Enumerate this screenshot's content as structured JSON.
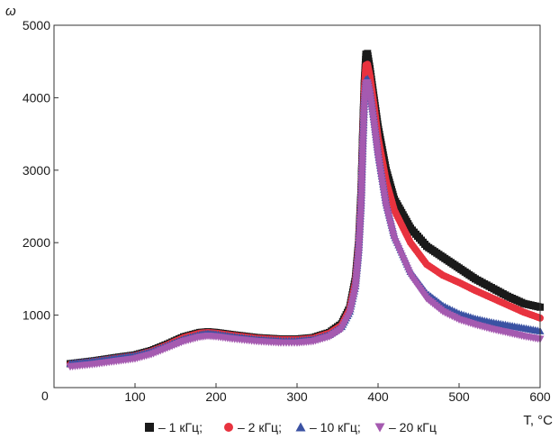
{
  "chart_data": {
    "type": "scatter",
    "ylabel": "ω",
    "xlabel": "T, °C",
    "xlim": [
      0,
      600
    ],
    "ylim": [
      0,
      5000
    ],
    "x_ticks": [
      "100",
      "200",
      "300",
      "400",
      "500",
      "600"
    ],
    "y_ticks": [
      "1000",
      "2000",
      "3000",
      "4000",
      "5000"
    ],
    "origin_label": "0",
    "grid": false,
    "legend_position": "bottom",
    "series": [
      {
        "name": "– 1 кГц;",
        "marker": "square",
        "color": "#1a1a1a",
        "points": [
          [
            20,
            330
          ],
          [
            50,
            370
          ],
          [
            80,
            420
          ],
          [
            100,
            450
          ],
          [
            120,
            510
          ],
          [
            140,
            600
          ],
          [
            160,
            700
          ],
          [
            180,
            760
          ],
          [
            190,
            770
          ],
          [
            200,
            760
          ],
          [
            220,
            730
          ],
          [
            250,
            690
          ],
          [
            280,
            670
          ],
          [
            300,
            670
          ],
          [
            320,
            690
          ],
          [
            340,
            760
          ],
          [
            355,
            880
          ],
          [
            365,
            1100
          ],
          [
            372,
            1500
          ],
          [
            376,
            2000
          ],
          [
            379,
            2700
          ],
          [
            381,
            3500
          ],
          [
            383,
            4200
          ],
          [
            385,
            4600
          ],
          [
            387,
            4610
          ],
          [
            390,
            4400
          ],
          [
            395,
            4000
          ],
          [
            400,
            3600
          ],
          [
            410,
            3000
          ],
          [
            420,
            2600
          ],
          [
            440,
            2200
          ],
          [
            460,
            1950
          ],
          [
            480,
            1800
          ],
          [
            500,
            1650
          ],
          [
            520,
            1500
          ],
          [
            540,
            1380
          ],
          [
            560,
            1260
          ],
          [
            580,
            1160
          ],
          [
            600,
            1110
          ]
        ]
      },
      {
        "name": "– 2 кГц;",
        "marker": "circle",
        "color": "#e8333f",
        "points": [
          [
            20,
            320
          ],
          [
            50,
            360
          ],
          [
            80,
            410
          ],
          [
            100,
            440
          ],
          [
            120,
            500
          ],
          [
            140,
            590
          ],
          [
            160,
            690
          ],
          [
            180,
            750
          ],
          [
            190,
            760
          ],
          [
            200,
            750
          ],
          [
            220,
            720
          ],
          [
            250,
            680
          ],
          [
            280,
            660
          ],
          [
            300,
            660
          ],
          [
            320,
            680
          ],
          [
            340,
            750
          ],
          [
            355,
            860
          ],
          [
            365,
            1080
          ],
          [
            372,
            1450
          ],
          [
            376,
            1950
          ],
          [
            379,
            2600
          ],
          [
            381,
            3400
          ],
          [
            383,
            4100
          ],
          [
            385,
            4450
          ],
          [
            387,
            4460
          ],
          [
            390,
            4300
          ],
          [
            395,
            3900
          ],
          [
            400,
            3450
          ],
          [
            410,
            2850
          ],
          [
            420,
            2450
          ],
          [
            440,
            2000
          ],
          [
            460,
            1700
          ],
          [
            480,
            1550
          ],
          [
            500,
            1450
          ],
          [
            520,
            1340
          ],
          [
            540,
            1240
          ],
          [
            560,
            1140
          ],
          [
            580,
            1040
          ],
          [
            600,
            960
          ]
        ]
      },
      {
        "name": "– 10 кГц;",
        "marker": "triangle-up",
        "color": "#3b52a3",
        "points": [
          [
            20,
            330
          ],
          [
            50,
            365
          ],
          [
            80,
            410
          ],
          [
            100,
            440
          ],
          [
            120,
            495
          ],
          [
            140,
            580
          ],
          [
            160,
            670
          ],
          [
            180,
            730
          ],
          [
            190,
            745
          ],
          [
            200,
            735
          ],
          [
            220,
            705
          ],
          [
            250,
            665
          ],
          [
            280,
            645
          ],
          [
            300,
            645
          ],
          [
            320,
            665
          ],
          [
            340,
            730
          ],
          [
            355,
            840
          ],
          [
            365,
            1050
          ],
          [
            372,
            1400
          ],
          [
            376,
            1900
          ],
          [
            379,
            2550
          ],
          [
            381,
            3300
          ],
          [
            383,
            3950
          ],
          [
            385,
            4250
          ],
          [
            387,
            4260
          ],
          [
            390,
            4100
          ],
          [
            395,
            3700
          ],
          [
            400,
            3250
          ],
          [
            410,
            2550
          ],
          [
            420,
            2100
          ],
          [
            440,
            1600
          ],
          [
            460,
            1300
          ],
          [
            480,
            1130
          ],
          [
            500,
            1020
          ],
          [
            520,
            950
          ],
          [
            540,
            900
          ],
          [
            560,
            860
          ],
          [
            580,
            820
          ],
          [
            600,
            780
          ]
        ]
      },
      {
        "name": "– 20 кГц",
        "marker": "triangle-down",
        "color": "#a55ab0",
        "points": [
          [
            20,
            290
          ],
          [
            50,
            325
          ],
          [
            80,
            370
          ],
          [
            100,
            400
          ],
          [
            120,
            460
          ],
          [
            140,
            550
          ],
          [
            160,
            640
          ],
          [
            180,
            700
          ],
          [
            190,
            715
          ],
          [
            200,
            705
          ],
          [
            220,
            675
          ],
          [
            250,
            640
          ],
          [
            280,
            620
          ],
          [
            300,
            620
          ],
          [
            320,
            640
          ],
          [
            340,
            705
          ],
          [
            355,
            810
          ],
          [
            365,
            1020
          ],
          [
            372,
            1370
          ],
          [
            376,
            1850
          ],
          [
            379,
            2500
          ],
          [
            381,
            3250
          ],
          [
            383,
            3900
          ],
          [
            385,
            4200
          ],
          [
            387,
            4210
          ],
          [
            390,
            4050
          ],
          [
            395,
            3650
          ],
          [
            400,
            3200
          ],
          [
            410,
            2500
          ],
          [
            420,
            2050
          ],
          [
            440,
            1550
          ],
          [
            460,
            1230
          ],
          [
            480,
            1050
          ],
          [
            500,
            940
          ],
          [
            520,
            870
          ],
          [
            540,
            810
          ],
          [
            560,
            760
          ],
          [
            580,
            710
          ],
          [
            600,
            670
          ]
        ]
      }
    ]
  }
}
